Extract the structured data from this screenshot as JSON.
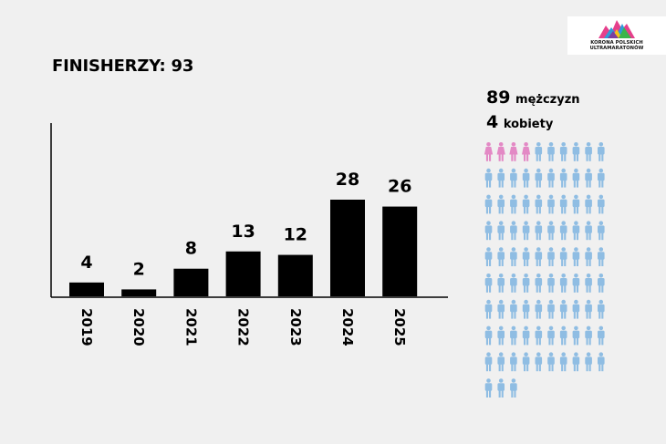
{
  "logo": {
    "line1": "KORONA POLSKICH",
    "line2": "ULTRAMARATONÓW"
  },
  "headline": "FINISHERZY: 93",
  "stats": {
    "men_count": "89",
    "men_label": "mężczyzn",
    "women_count": "4",
    "women_label": "kobiety"
  },
  "people": {
    "men": 89,
    "women": 4,
    "per_row": 10,
    "men_color": "#8fbde3",
    "women_color": "#e389c5"
  },
  "colors": {
    "bar": "#000000",
    "background": "#f0f0f0"
  },
  "chart_data": {
    "type": "bar",
    "title": "",
    "xlabel": "",
    "ylabel": "",
    "categories": [
      "2019",
      "2020",
      "2021",
      "2022",
      "2023",
      "2024",
      "2025"
    ],
    "values": [
      4,
      2,
      8,
      13,
      12,
      28,
      26
    ],
    "data_labels": [
      "4",
      "2",
      "8",
      "13",
      "12",
      "28",
      "26"
    ],
    "ylim": [
      0,
      28
    ],
    "grid": false,
    "legend": "none"
  }
}
